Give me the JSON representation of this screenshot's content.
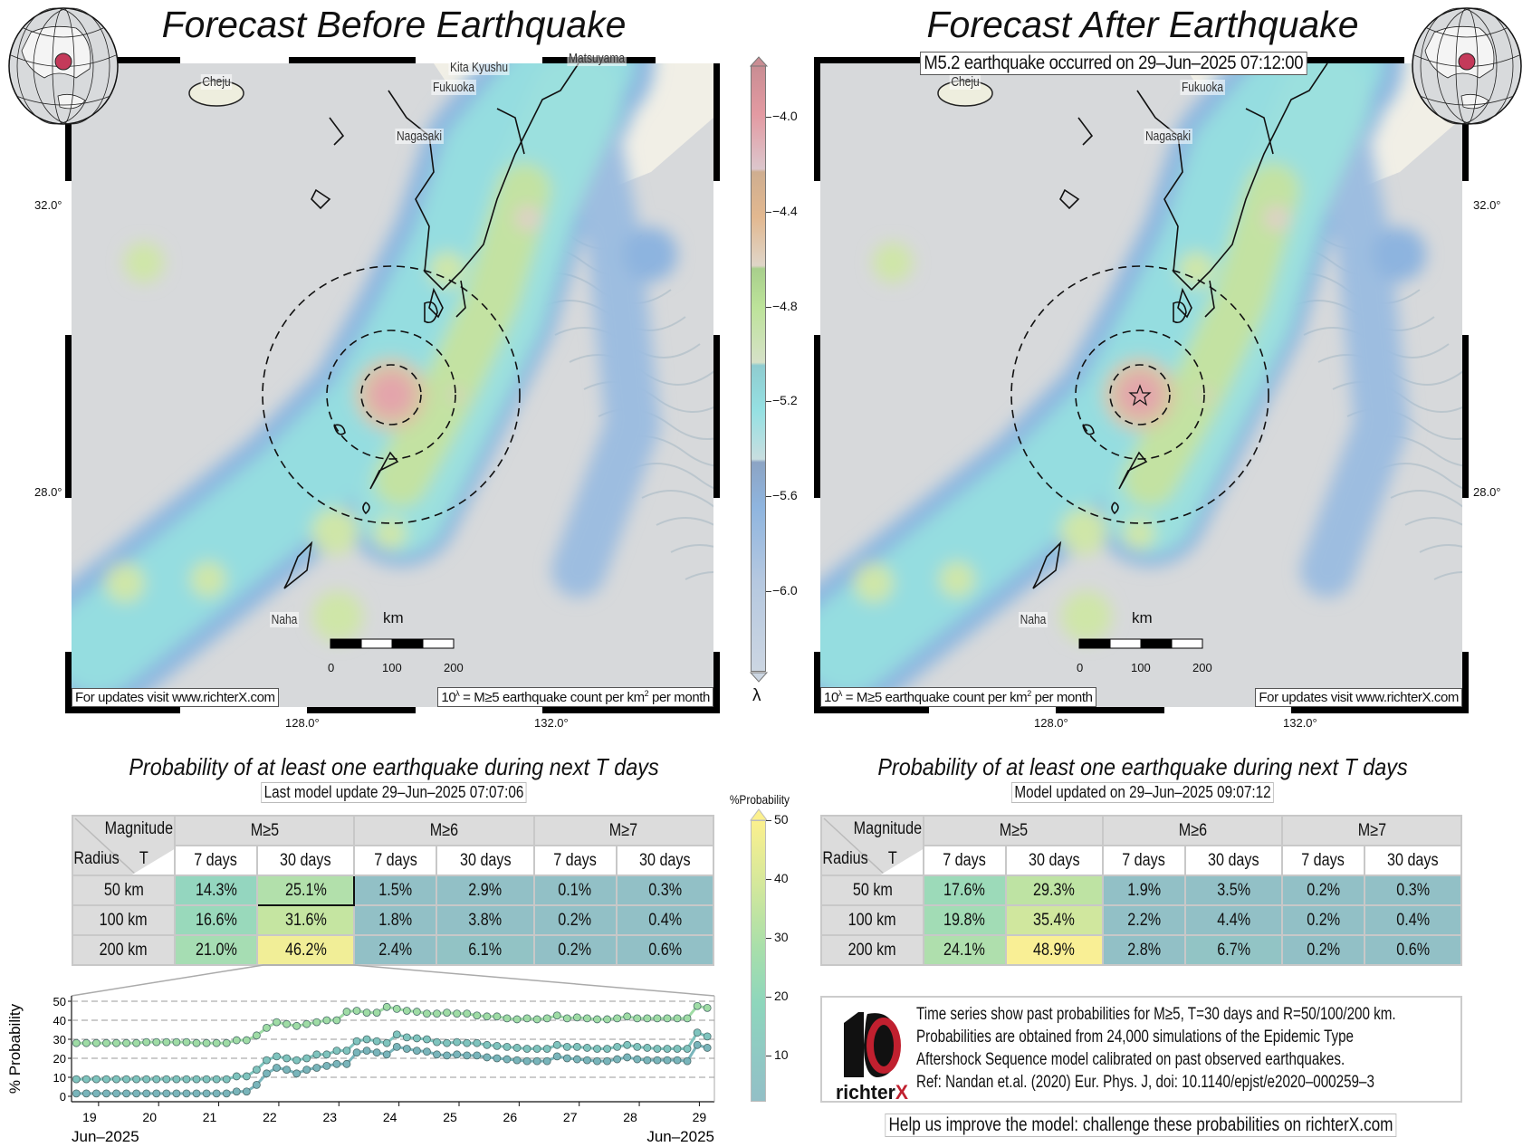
{
  "left": {
    "title": "Forecast Before Earthquake",
    "cities": [
      "Cheju",
      "Kita Kyushu",
      "Fukuoka",
      "Nagasaki",
      "Naha",
      "Matsuyama"
    ],
    "scale": {
      "unit": "km",
      "ticks": [
        "0",
        "100",
        "200"
      ]
    },
    "updates_note": "For updates visit www.richterX.com",
    "lambda_note": {
      "base": "10",
      "exp": "λ",
      "mid": " = M≥5 earthquake count per km",
      "sq": "2",
      "end": " per month"
    },
    "lat_labels": [
      "32.0°",
      "28.0°"
    ],
    "lon_labels": [
      "128.0°",
      "132.0°"
    ]
  },
  "right": {
    "title": "Forecast After Earthquake",
    "event_label": "M5.2 earthquake occurred on 29–Jun–2025 07:12:00",
    "cities": [
      "Cheju",
      "Fukuoka",
      "Nagasaki",
      "Naha"
    ],
    "scale": {
      "unit": "km",
      "ticks": [
        "0",
        "100",
        "200"
      ]
    },
    "updates_note": "For updates visit www.richterX.com",
    "lambda_note": {
      "base": "10",
      "exp": "λ",
      "mid": " = M≥5 earthquake count per km",
      "sq": "2",
      "end": " per month"
    },
    "lat_labels": [
      "32.0°",
      "28.0°"
    ],
    "lon_labels": [
      "128.0°",
      "132.0°"
    ]
  },
  "lambda_colorbar": {
    "label": "λ",
    "ticks": [
      "−4.0",
      "−4.4",
      "−4.8",
      "−5.2",
      "−5.6",
      "−6.0"
    ]
  },
  "prob_colorbar": {
    "label": "%Probability",
    "ticks": [
      "50",
      "40",
      "30",
      "20",
      "10"
    ]
  },
  "tables": {
    "left": {
      "title": "Probability of at least one earthquake during next T days",
      "update": "Last model update 29–Jun–2025 07:07:06",
      "magnitude_label": "Magnitude",
      "radius_label": "Radius",
      "t_label": "T",
      "mags": [
        "M≥5",
        "M≥6",
        "M≥7"
      ],
      "periods": [
        "7 days",
        "30 days",
        "7 days",
        "30 days",
        "7 days",
        "30 days"
      ],
      "rows": [
        {
          "radius": "50 km",
          "values": [
            "14.3%",
            "25.1%",
            "1.5%",
            "2.9%",
            "0.1%",
            "0.3%"
          ]
        },
        {
          "radius": "100 km",
          "values": [
            "16.6%",
            "31.6%",
            "1.8%",
            "3.8%",
            "0.2%",
            "0.4%"
          ]
        },
        {
          "radius": "200 km",
          "values": [
            "21.0%",
            "46.2%",
            "2.4%",
            "6.1%",
            "0.2%",
            "0.6%"
          ]
        }
      ]
    },
    "right": {
      "title": "Probability of at least one earthquake during next T days",
      "update": "Model updated on 29–Jun–2025 09:07:12",
      "magnitude_label": "Magnitude",
      "radius_label": "Radius",
      "t_label": "T",
      "mags": [
        "M≥5",
        "M≥6",
        "M≥7"
      ],
      "periods": [
        "7 days",
        "30 days",
        "7 days",
        "30 days",
        "7 days",
        "30 days"
      ],
      "rows": [
        {
          "radius": "50 km",
          "values": [
            "17.6%",
            "29.3%",
            "1.9%",
            "3.5%",
            "0.2%",
            "0.3%"
          ]
        },
        {
          "radius": "100 km",
          "values": [
            "19.8%",
            "35.4%",
            "2.2%",
            "4.4%",
            "0.2%",
            "0.4%"
          ]
        },
        {
          "radius": "200 km",
          "values": [
            "24.1%",
            "48.9%",
            "2.8%",
            "6.7%",
            "0.2%",
            "0.6%"
          ]
        }
      ]
    }
  },
  "chart_data": {
    "type": "line",
    "ylabel": "% Probability",
    "xlabel_left": "Jun–2025",
    "xlabel_right": "Jun–2025",
    "xlim": [
      18.55,
      29.25
    ],
    "ylim": [
      0,
      50
    ],
    "yticks": [
      "0",
      "10",
      "20",
      "30",
      "40",
      "50"
    ],
    "xticks": [
      "19",
      "20",
      "21",
      "22",
      "23",
      "24",
      "25",
      "26",
      "27",
      "28",
      "29"
    ],
    "grid": true,
    "x_start": 18.63,
    "x_step": 0.1667,
    "series": [
      {
        "name": "R=200 km",
        "color": "#9fdca5",
        "values": [
          28,
          28,
          28,
          28,
          28,
          28,
          28,
          28.5,
          28.5,
          28.5,
          28.5,
          28.5,
          28,
          28,
          28,
          28,
          29.5,
          29.5,
          32,
          36,
          39,
          38,
          37,
          38,
          39,
          40,
          40,
          44.5,
          45,
          44,
          44,
          47,
          46,
          45,
          44.5,
          43.5,
          43.5,
          44,
          43.5,
          43.5,
          42.5,
          42,
          42,
          41,
          40.5,
          41,
          40.5,
          41,
          42.5,
          41,
          41.5,
          41,
          40.5,
          40.5,
          41,
          42,
          41,
          41,
          41,
          41,
          41,
          41,
          47.5,
          46.5
        ]
      },
      {
        "name": "R=100 km",
        "color": "#7fc4be",
        "values": [
          9,
          9,
          9,
          9,
          9,
          9,
          9,
          9,
          9,
          9,
          9,
          9,
          9,
          9,
          9,
          9,
          10.5,
          10.5,
          14,
          19,
          21,
          20,
          19,
          20,
          22,
          22,
          24,
          24,
          29,
          30,
          29,
          28,
          32.5,
          31,
          30.5,
          30,
          28.5,
          28,
          28.5,
          28,
          28,
          27,
          26.5,
          26,
          25.5,
          25,
          25,
          25,
          27,
          26,
          26,
          25.5,
          25,
          25,
          26,
          27,
          26,
          25.5,
          25,
          25,
          25,
          25,
          33.5,
          31.5
        ]
      },
      {
        "name": "R=50 km",
        "color": "#79b5bb",
        "values": [
          1.5,
          1.5,
          1.5,
          1.5,
          1.5,
          1.5,
          1.5,
          1.5,
          1.5,
          1.5,
          1.5,
          1.5,
          1.5,
          1.5,
          1.5,
          1.5,
          2.5,
          2.5,
          6,
          12,
          15,
          14,
          12,
          14,
          15,
          16,
          17,
          17,
          23,
          24,
          23,
          22,
          26,
          25,
          24,
          23.5,
          22,
          21.5,
          22,
          21.5,
          21.5,
          20.5,
          20,
          19.5,
          19,
          18.5,
          18.5,
          18.5,
          21,
          20,
          19.5,
          19,
          18.5,
          18.5,
          19.5,
          20.5,
          19.5,
          19,
          19,
          19,
          19,
          18.5,
          27,
          25.5
        ]
      }
    ]
  },
  "info": {
    "logo_text": "richterX",
    "lines": [
      "Time series show past probabilities for M≥5, T=30 days and R=50/100/200 km.",
      "Probabilities are obtained from 24,000 simulations of the Epidemic Type",
      "Aftershock Sequence model calibrated on past observed earthquakes.",
      "Ref: Nandan et.al. (2020) Eur. Phys. J, doi: 10.1140/epjst/e2020–000259–3"
    ],
    "help": "Help us improve the model: challenge these probabilities on richterX.com"
  }
}
